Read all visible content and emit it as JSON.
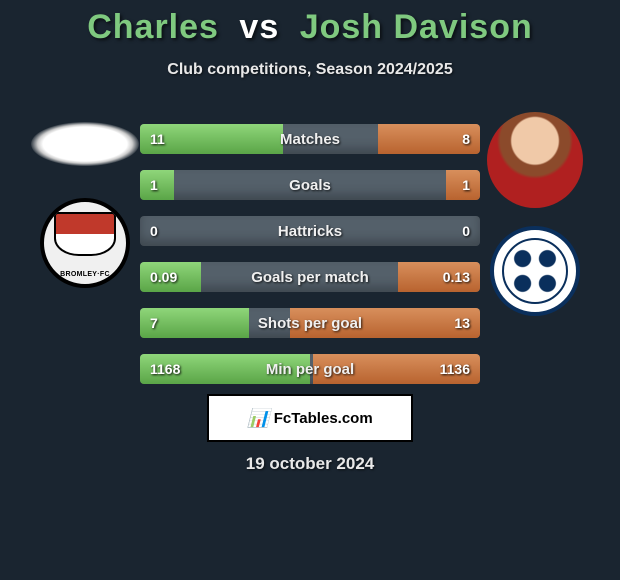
{
  "title": {
    "player1": "Charles",
    "vs": "vs",
    "player2": "Josh Davison"
  },
  "subtitle": "Club competitions, Season 2024/2025",
  "colors": {
    "player1_bar": "#74c365",
    "player2_bar": "#c77a3f",
    "neutral_bar": "#54606a",
    "background": "#1a2530"
  },
  "stats": [
    {
      "label": "Matches",
      "p1": "11",
      "p2": "8",
      "p1_pct": 42,
      "p2_pct": 30
    },
    {
      "label": "Goals",
      "p1": "1",
      "p2": "1",
      "p1_pct": 10,
      "p2_pct": 10
    },
    {
      "label": "Hattricks",
      "p1": "0",
      "p2": "0",
      "p1_pct": 0,
      "p2_pct": 0
    },
    {
      "label": "Goals per match",
      "p1": "0.09",
      "p2": "0.13",
      "p1_pct": 18,
      "p2_pct": 24
    },
    {
      "label": "Shots per goal",
      "p1": "7",
      "p2": "13",
      "p1_pct": 32,
      "p2_pct": 56
    },
    {
      "label": "Min per goal",
      "p1": "1168",
      "p2": "1136",
      "p1_pct": 50,
      "p2_pct": 49
    }
  ],
  "footer": {
    "brand": "FcTables.com"
  },
  "date": "19 october 2024"
}
